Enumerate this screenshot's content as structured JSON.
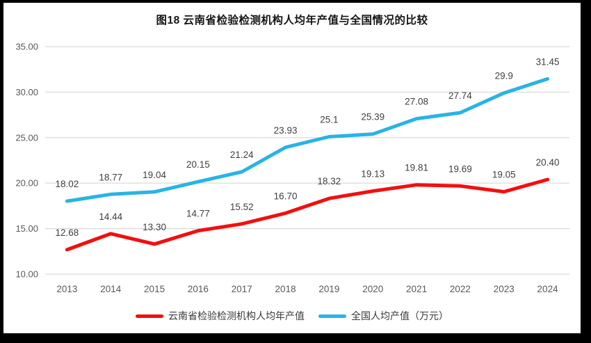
{
  "chart_title": "图18  云南省检验检测机构人均年产值与全国情况的比较",
  "colors": {
    "yunnan_red": "#f60d0d",
    "national_blue": "#29b3e6",
    "gridline": "#d9d9d9",
    "axis_text": "#595959",
    "data_label_text": "#3f3f3f",
    "background": "#ffffff",
    "outer_frame": "#000000"
  },
  "legend": {
    "items": [
      {
        "label": "云南省检验检测机构人均年产值",
        "color": "#f60d0d"
      },
      {
        "label": "全国人均产值（万元）",
        "color": "#29b3e6"
      }
    ]
  },
  "chart_data": {
    "type": "line",
    "title": "图18  云南省检验检测机构人均年产值与全国情况的比较",
    "categories": [
      "2013",
      "2014",
      "2015",
      "2016",
      "2017",
      "2018",
      "2019",
      "2020",
      "2021",
      "2022",
      "2023",
      "2024"
    ],
    "series": [
      {
        "name": "云南省检验检测机构人均年产值",
        "color": "#f60d0d",
        "values": [
          12.68,
          14.44,
          13.3,
          14.77,
          15.52,
          16.7,
          18.32,
          19.13,
          19.81,
          19.69,
          19.05,
          20.4
        ],
        "labels": [
          "12.68",
          "14.44",
          "13.30",
          "14.77",
          "15.52",
          "16.70",
          "18.32",
          "19.13",
          "19.81",
          "19.69",
          "19.05",
          "20.40"
        ]
      },
      {
        "name": "全国人均产值（万元）",
        "color": "#29b3e6",
        "values": [
          18.02,
          18.77,
          19.04,
          20.15,
          21.24,
          23.93,
          25.1,
          25.39,
          27.08,
          27.74,
          29.9,
          31.45
        ],
        "labels": [
          "18.02",
          "18.77",
          "19.04",
          "20.15",
          "21.24",
          "23.93",
          "25.1",
          "25.39",
          "27.08",
          "27.74",
          "29.9",
          "31.45"
        ]
      }
    ],
    "xlabel": "",
    "ylabel": "",
    "ylim": [
      10,
      35
    ],
    "y_step": 5,
    "y_tick_labels": [
      "10.00",
      "15.00",
      "20.00",
      "25.00",
      "30.00",
      "35.00"
    ],
    "grid": true,
    "legend_position": "bottom",
    "markers": false
  }
}
